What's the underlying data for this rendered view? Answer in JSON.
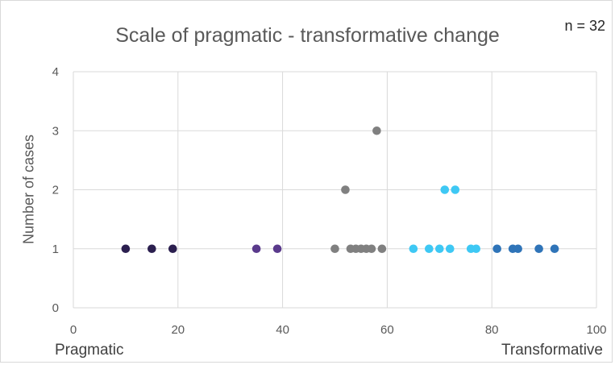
{
  "chart_data": {
    "type": "scatter",
    "title": "Scale of pragmatic - transformative change",
    "annotation_n": "n = 32",
    "xlabel": "",
    "ylabel": "Number of cases",
    "xlim": [
      0,
      100
    ],
    "ylim": [
      0,
      4
    ],
    "x_ticks": [
      0,
      20,
      40,
      60,
      80,
      100
    ],
    "y_ticks": [
      0,
      1,
      2,
      3,
      4
    ],
    "grid": true,
    "x_endpoint_labels": {
      "left": "Pragmatic",
      "right": "Transformative"
    },
    "series": [
      {
        "color": "#2b1f4f",
        "points": [
          [
            10,
            1
          ],
          [
            15,
            1
          ],
          [
            19,
            1
          ]
        ]
      },
      {
        "color": "#5a3a8c",
        "points": [
          [
            35,
            1
          ],
          [
            39,
            1
          ]
        ]
      },
      {
        "color": "#808080",
        "points": [
          [
            50,
            1
          ],
          [
            52,
            2
          ],
          [
            53,
            1
          ],
          [
            54,
            1
          ],
          [
            55,
            1
          ],
          [
            56,
            1
          ],
          [
            57,
            1
          ],
          [
            58,
            3
          ],
          [
            59,
            1
          ]
        ]
      },
      {
        "color": "#3ec8f4",
        "points": [
          [
            65,
            1
          ],
          [
            68,
            1
          ],
          [
            70,
            1
          ],
          [
            71,
            2
          ],
          [
            72,
            1
          ],
          [
            73,
            2
          ],
          [
            76,
            1
          ],
          [
            77,
            1
          ]
        ]
      },
      {
        "color": "#2f74b8",
        "points": [
          [
            81,
            1
          ],
          [
            84,
            1
          ],
          [
            85,
            1
          ],
          [
            89,
            1
          ],
          [
            92,
            1
          ]
        ]
      }
    ]
  }
}
